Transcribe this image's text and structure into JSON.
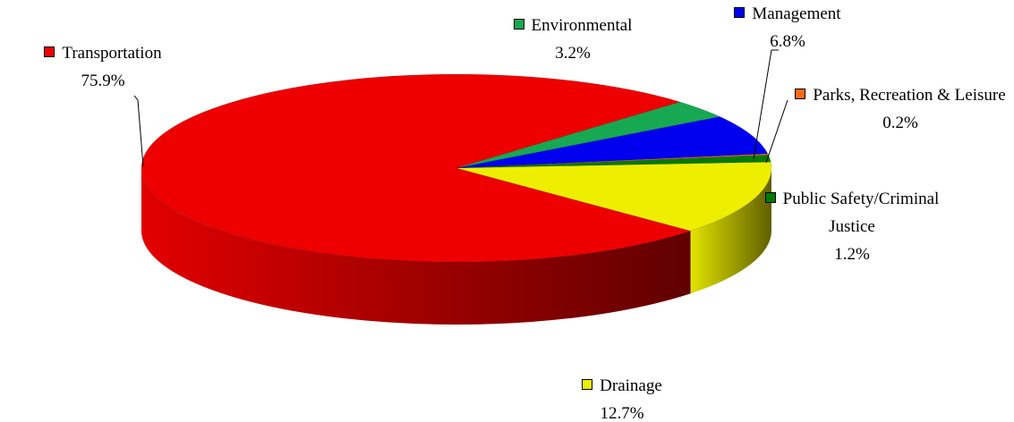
{
  "chart_data": {
    "type": "pie",
    "categories": [
      "Transportation",
      "Environmental",
      "Management",
      "Parks, Recreation & Leisure",
      "Public Safety/Criminal Justice",
      "Drainage"
    ],
    "values": [
      75.9,
      3.2,
      6.8,
      0.2,
      1.2,
      12.7
    ],
    "value_labels": [
      "75.9%",
      "3.2%",
      "6.8%",
      "0.2%",
      "1.2%",
      "12.7%"
    ],
    "colors": [
      "#ee0000",
      "#17a852",
      "#0000ee",
      "#ff6a13",
      "#007a00",
      "#eeee00"
    ]
  }
}
